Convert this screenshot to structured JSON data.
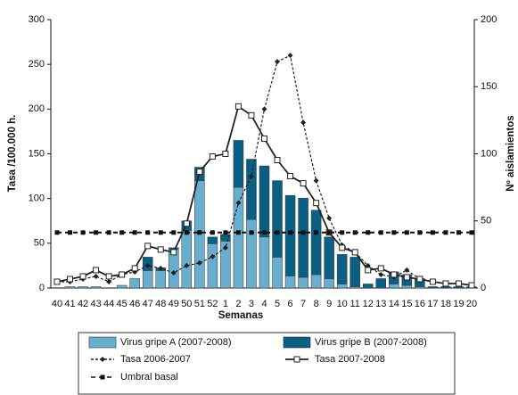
{
  "chart_data": {
    "type": "bar",
    "categories": [
      "40",
      "41",
      "42",
      "43",
      "44",
      "45",
      "46",
      "47",
      "48",
      "49",
      "50",
      "51",
      "52",
      "1",
      "2",
      "3",
      "4",
      "5",
      "6",
      "7",
      "8",
      "9",
      "10",
      "11",
      "12",
      "13",
      "14",
      "15",
      "16",
      "17",
      "18",
      "19",
      "20"
    ],
    "x_label": "Semanas",
    "y_label": "Tasa /100.000 h.",
    "y2_label": "Nº aislamientos",
    "ylim": [
      0,
      300
    ],
    "yticks": [
      0,
      50,
      100,
      150,
      200,
      250,
      300
    ],
    "y2lim": [
      0,
      200
    ],
    "y2ticks": [
      0,
      50,
      100,
      150,
      200
    ],
    "series": [
      {
        "name": "Virus gripe A (2007-2008)",
        "type": "bar",
        "axis": "y2",
        "color": "#6aaecf",
        "values": [
          0,
          1,
          1,
          1,
          0,
          2,
          7,
          13,
          13,
          29,
          43,
          80,
          33,
          35,
          75,
          51,
          38,
          23,
          9,
          8,
          10,
          7,
          3,
          1,
          0,
          0,
          3,
          2,
          1,
          0,
          0,
          0,
          0
        ]
      },
      {
        "name": "Virus gripe B (2007-2008)",
        "type": "bar",
        "axis": "y2",
        "color": "#0b5f83",
        "values": [
          0,
          0,
          0,
          0,
          0,
          0,
          0,
          10,
          2,
          1,
          7,
          10,
          5,
          5,
          35,
          45,
          53,
          57,
          60,
          59,
          48,
          31,
          22,
          22,
          3,
          7,
          9,
          8,
          6,
          1,
          1,
          1,
          1
        ]
      },
      {
        "name": "Tasa 2006-2007",
        "type": "line",
        "style": "dashed",
        "marker": "diamond",
        "color": "#222222",
        "values": [
          7,
          7,
          10,
          13,
          7,
          15,
          18,
          25,
          22,
          17,
          25,
          28,
          35,
          45,
          95,
          125,
          200,
          253,
          260,
          185,
          120,
          78,
          48,
          40,
          25,
          15,
          12,
          20,
          10,
          7,
          5,
          5,
          3
        ]
      },
      {
        "name": "Tasa 2007-2008",
        "type": "line",
        "style": "solid",
        "marker": "square-open",
        "color": "#222222",
        "values": [
          7,
          10,
          13,
          20,
          13,
          15,
          22,
          47,
          43,
          40,
          72,
          130,
          147,
          150,
          203,
          193,
          167,
          143,
          125,
          117,
          95,
          62,
          45,
          40,
          20,
          22,
          15,
          12,
          10,
          7,
          5,
          5,
          3
        ]
      },
      {
        "name": "Umbral basal",
        "type": "line",
        "style": "dashed-thick",
        "marker": "square",
        "color": "#111111",
        "values": [
          62,
          62,
          62,
          62,
          62,
          62,
          62,
          62,
          62,
          62,
          62,
          62,
          62,
          62,
          62,
          62,
          62,
          62,
          62,
          62,
          62,
          62,
          62,
          62,
          62,
          62,
          62,
          62,
          62,
          62,
          62,
          62,
          62
        ]
      }
    ]
  }
}
